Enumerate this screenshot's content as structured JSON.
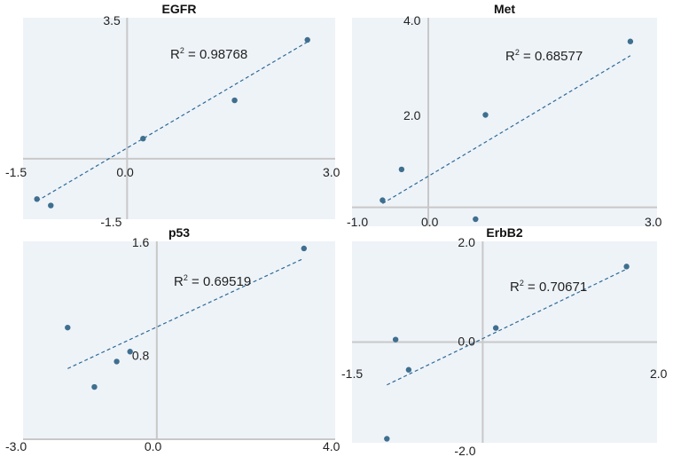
{
  "chart_data": [
    {
      "type": "scatter",
      "title": "EGFR",
      "xlim": [
        -1.5,
        3.0
      ],
      "ylim": [
        -1.5,
        3.5
      ],
      "x_tick_labels": [
        "-1.5",
        "0.0",
        "3.0"
      ],
      "y_tick_labels": [
        "3.5",
        "-1.5"
      ],
      "points": [
        [
          -1.3,
          -1.0
        ],
        [
          -1.1,
          -1.16
        ],
        [
          0.23,
          0.5
        ],
        [
          1.55,
          1.45
        ],
        [
          2.6,
          2.95
        ]
      ],
      "trendline": [
        [
          -1.3,
          -1.05
        ],
        [
          2.6,
          2.9
        ]
      ],
      "r2_label": "R",
      "r2_sup": "2",
      "r2_value": " = 0.98768",
      "bg_color": "#eef3f8",
      "point_color": "#3f6f8f",
      "trend_color": "#2e6a96",
      "axis_color": "#c8c8c8",
      "grid": false
    },
    {
      "type": "scatter",
      "title": "Met",
      "xlim": [
        -1.0,
        3.0
      ],
      "ylim": [
        -0.4,
        4.0
      ],
      "x_tick_labels": [
        "-1.0",
        "0.0",
        "3.0"
      ],
      "y_tick_labels": [
        "4.0",
        "2.0"
      ],
      "points": [
        [
          -0.6,
          0.15
        ],
        [
          -0.35,
          0.8
        ],
        [
          0.62,
          -0.25
        ],
        [
          0.75,
          1.95
        ],
        [
          2.65,
          3.5
        ]
      ],
      "trendline": [
        [
          -0.6,
          0.08
        ],
        [
          2.65,
          3.2
        ]
      ],
      "r2_label": "R",
      "r2_sup": "2",
      "r2_value": " = 0.68577",
      "bg_color": "#eef3f8",
      "point_color": "#3f6f8f",
      "trend_color": "#2e6a96",
      "axis_color": "#c8c8c8",
      "grid": false
    },
    {
      "type": "scatter",
      "title": "p53",
      "xlim": [
        -3.0,
        4.0
      ],
      "ylim": [
        0.2,
        1.6
      ],
      "x_tick_labels": [
        "-3.0",
        "0.0",
        "4.0"
      ],
      "y_tick_labels": [
        "1.6",
        "0.8"
      ],
      "points": [
        [
          -2.0,
          0.99
        ],
        [
          -1.4,
          0.57
        ],
        [
          -0.9,
          0.75
        ],
        [
          -0.6,
          0.82
        ],
        [
          3.3,
          1.55
        ]
      ],
      "trendline": [
        [
          -2.0,
          0.7
        ],
        [
          3.3,
          1.48
        ]
      ],
      "r2_label": "R",
      "r2_sup": "2",
      "r2_value": " = 0.69519",
      "bg_color": "#eef3f8",
      "point_color": "#3f6f8f",
      "trend_color": "#2e6a96",
      "axis_color": "#c8c8c8",
      "grid": false
    },
    {
      "type": "scatter",
      "title": "ErbB2",
      "xlim": [
        -1.5,
        2.0
      ],
      "ylim": [
        -2.0,
        2.0
      ],
      "x_tick_labels": [
        "-1.5",
        "2.0"
      ],
      "y_tick_labels": [
        "2.0",
        "0.0",
        "-2.0"
      ],
      "points": [
        [
          -1.1,
          -1.92
        ],
        [
          -1.0,
          0.05
        ],
        [
          -0.85,
          -0.55
        ],
        [
          0.15,
          0.28
        ],
        [
          1.65,
          1.5
        ]
      ],
      "trendline": [
        [
          -1.1,
          -0.85
        ],
        [
          1.65,
          1.45
        ]
      ],
      "r2_label": "R",
      "r2_sup": "2",
      "r2_value": " = 0.70671",
      "bg_color": "#eef3f8",
      "point_color": "#3f6f8f",
      "trend_color": "#2e6a96",
      "axis_color": "#c8c8c8",
      "grid": false
    }
  ]
}
